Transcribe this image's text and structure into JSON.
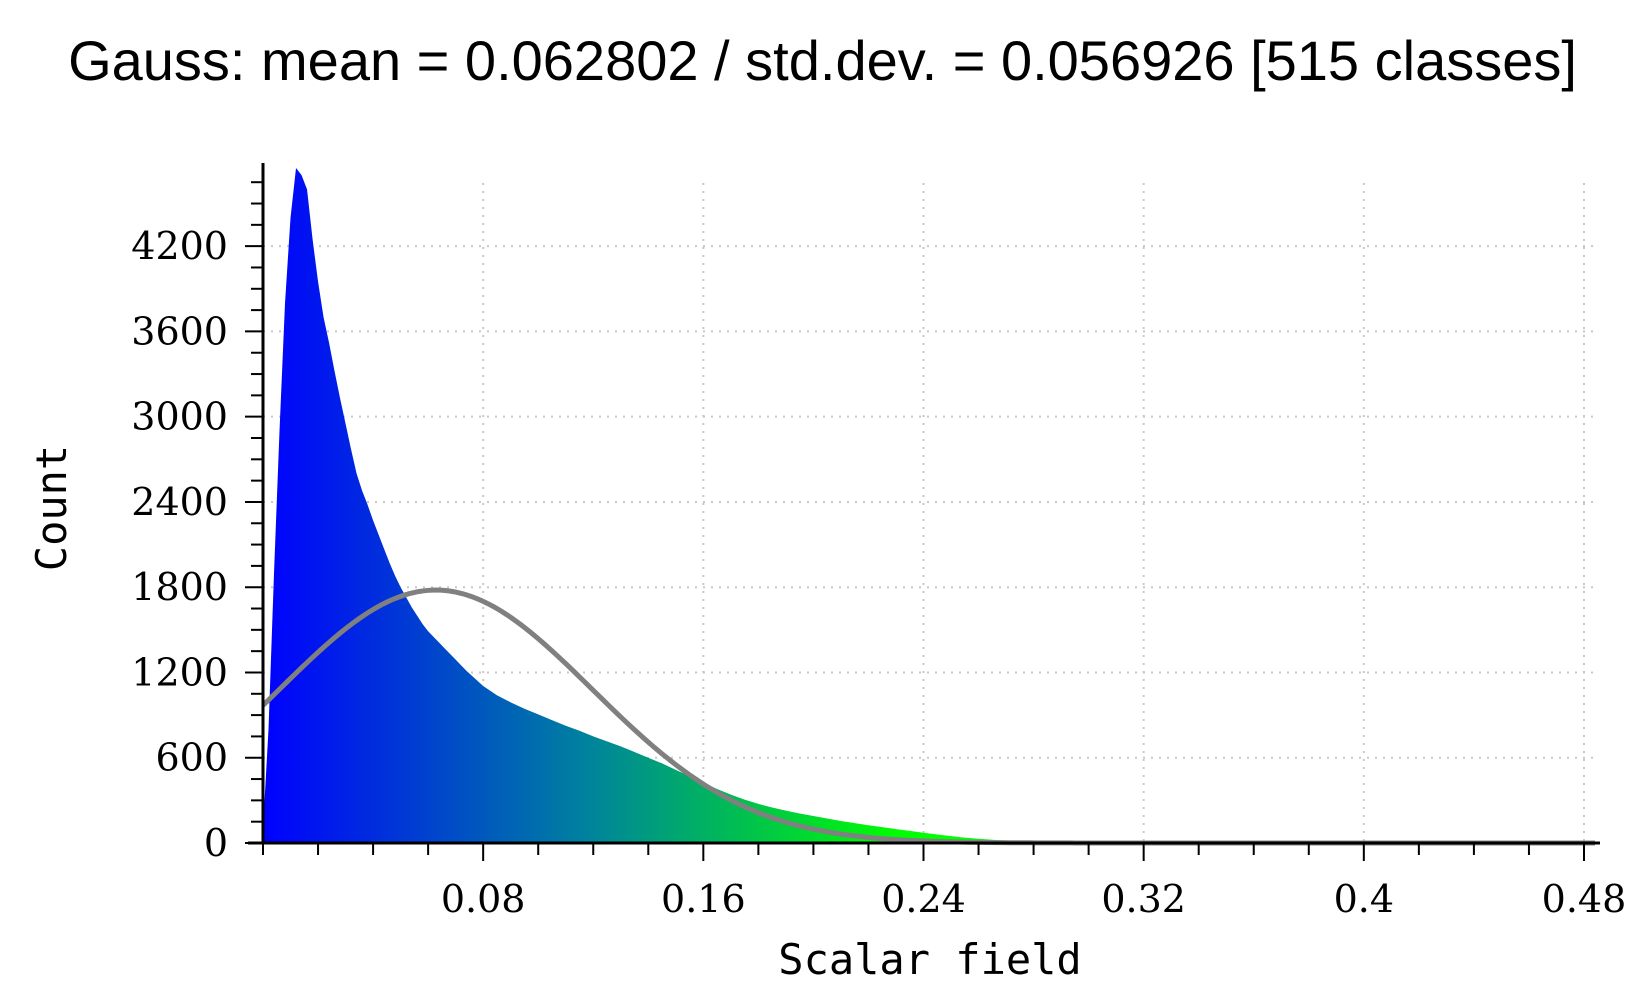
{
  "title": "Gauss: mean = 0.062802 / std.dev. = 0.056926 [515 classes]",
  "chart_data": {
    "type": "bar",
    "title": "Gauss: mean = 0.062802 / std.dev. = 0.056926 [515 classes]",
    "xlabel": "Scalar field",
    "ylabel": "Count",
    "xlim": [
      0.0,
      0.484
    ],
    "ylim": [
      0,
      4750
    ],
    "x_ticks": [
      0.08,
      0.16,
      0.24,
      0.32,
      0.4,
      0.48
    ],
    "x_tick_labels": [
      "0.08",
      "0.16",
      "0.24",
      "0.32",
      "0.4",
      "0.48"
    ],
    "y_ticks": [
      0,
      600,
      1200,
      1800,
      2400,
      3000,
      3600,
      4200
    ],
    "y_tick_labels": [
      "0",
      "600",
      "1200",
      "1800",
      "2400",
      "3000",
      "3600",
      "4200"
    ],
    "grid": true,
    "gauss": {
      "mean": 0.062802,
      "std_dev": 0.056926,
      "classes": 515,
      "color": "#808080"
    },
    "colors": {
      "low": "#0000ff",
      "mid": "#0080a0",
      "high": "#00ff00",
      "grid": "#c8c8c8",
      "axis": "#000000"
    },
    "series": [
      {
        "values": [
          [
            0.0,
            100
          ],
          [
            0.002,
            800
          ],
          [
            0.004,
            1900
          ],
          [
            0.006,
            2900
          ],
          [
            0.008,
            3800
          ],
          [
            0.01,
            4400
          ],
          [
            0.012,
            4750
          ],
          [
            0.014,
            4700
          ],
          [
            0.016,
            4600
          ],
          [
            0.018,
            4250
          ],
          [
            0.02,
            3950
          ],
          [
            0.022,
            3700
          ],
          [
            0.024,
            3520
          ],
          [
            0.026,
            3320
          ],
          [
            0.028,
            3130
          ],
          [
            0.03,
            2950
          ],
          [
            0.032,
            2770
          ],
          [
            0.034,
            2600
          ],
          [
            0.036,
            2480
          ],
          [
            0.038,
            2380
          ],
          [
            0.04,
            2270
          ],
          [
            0.042,
            2170
          ],
          [
            0.044,
            2070
          ],
          [
            0.046,
            1970
          ],
          [
            0.048,
            1880
          ],
          [
            0.05,
            1800
          ],
          [
            0.052,
            1730
          ],
          [
            0.054,
            1660
          ],
          [
            0.056,
            1600
          ],
          [
            0.058,
            1540
          ],
          [
            0.06,
            1490
          ],
          [
            0.062,
            1450
          ],
          [
            0.064,
            1410
          ],
          [
            0.066,
            1370
          ],
          [
            0.068,
            1330
          ],
          [
            0.07,
            1290
          ],
          [
            0.072,
            1250
          ],
          [
            0.074,
            1210
          ],
          [
            0.076,
            1175
          ],
          [
            0.078,
            1140
          ],
          [
            0.08,
            1105
          ],
          [
            0.085,
            1040
          ],
          [
            0.09,
            990
          ],
          [
            0.095,
            945
          ],
          [
            0.1,
            905
          ],
          [
            0.105,
            865
          ],
          [
            0.11,
            825
          ],
          [
            0.115,
            790
          ],
          [
            0.12,
            750
          ],
          [
            0.125,
            715
          ],
          [
            0.13,
            680
          ],
          [
            0.135,
            640
          ],
          [
            0.14,
            600
          ],
          [
            0.145,
            560
          ],
          [
            0.15,
            515
          ],
          [
            0.155,
            470
          ],
          [
            0.16,
            425
          ],
          [
            0.165,
            380
          ],
          [
            0.17,
            340
          ],
          [
            0.175,
            305
          ],
          [
            0.18,
            275
          ],
          [
            0.185,
            250
          ],
          [
            0.19,
            228
          ],
          [
            0.195,
            208
          ],
          [
            0.2,
            190
          ],
          [
            0.205,
            172
          ],
          [
            0.21,
            155
          ],
          [
            0.215,
            140
          ],
          [
            0.22,
            125
          ],
          [
            0.225,
            112
          ],
          [
            0.23,
            98
          ],
          [
            0.235,
            85
          ],
          [
            0.24,
            72
          ],
          [
            0.245,
            60
          ],
          [
            0.25,
            48
          ],
          [
            0.255,
            38
          ],
          [
            0.26,
            30
          ],
          [
            0.265,
            23
          ],
          [
            0.27,
            17
          ],
          [
            0.275,
            12
          ],
          [
            0.28,
            9
          ],
          [
            0.29,
            6
          ],
          [
            0.3,
            4
          ],
          [
            0.32,
            3
          ],
          [
            0.34,
            2
          ],
          [
            0.36,
            1
          ],
          [
            0.4,
            1
          ],
          [
            0.44,
            0
          ],
          [
            0.484,
            0
          ]
        ]
      }
    ]
  }
}
